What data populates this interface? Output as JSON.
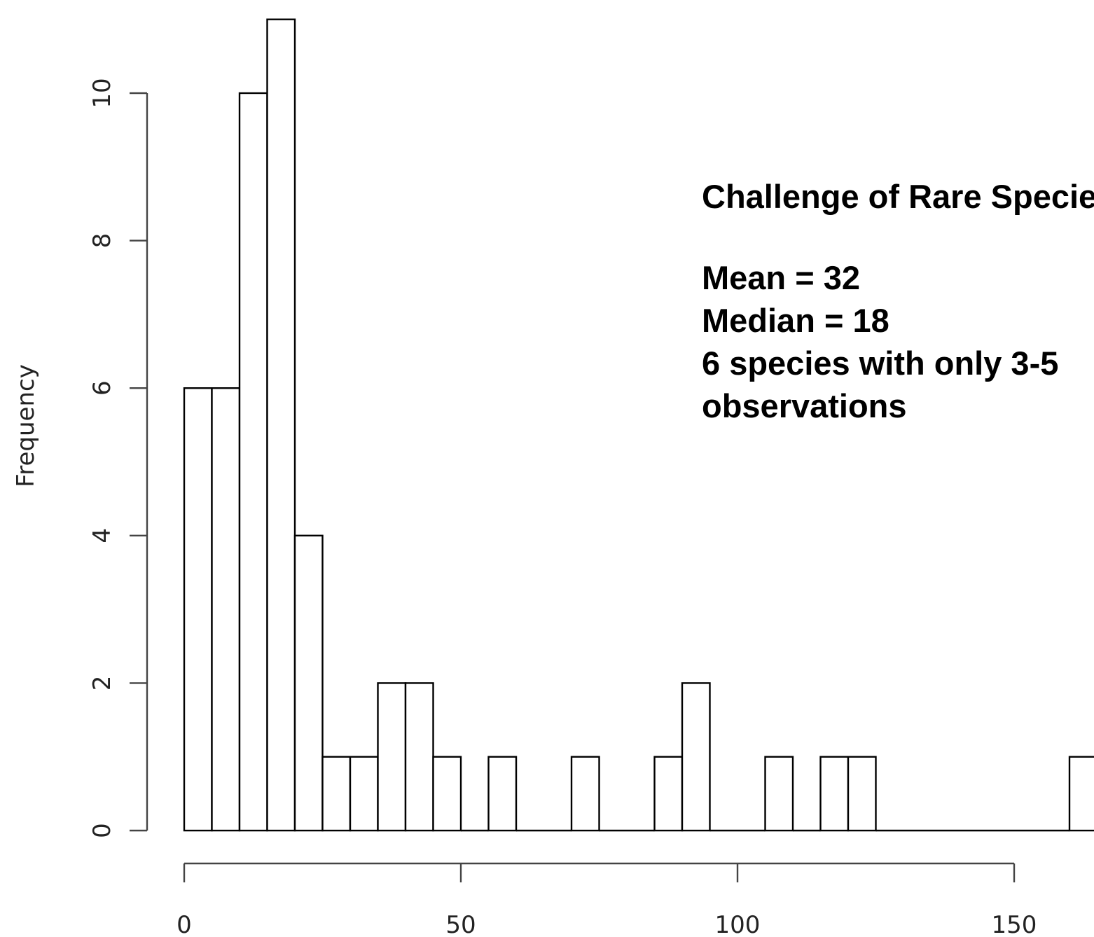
{
  "chart_data": {
    "type": "bar",
    "subtype": "histogram",
    "title": "",
    "xlabel": "",
    "ylabel": "Frequency",
    "bin_width": 5,
    "bin_starts": [
      0,
      5,
      10,
      15,
      20,
      25,
      30,
      35,
      40,
      45,
      50,
      55,
      60,
      65,
      70,
      75,
      80,
      85,
      90,
      95,
      100,
      105,
      110,
      115,
      120,
      125,
      130,
      135,
      140,
      145,
      150,
      155,
      160
    ],
    "values": [
      6,
      6,
      10,
      11,
      4,
      1,
      1,
      2,
      2,
      1,
      0,
      1,
      0,
      0,
      1,
      0,
      0,
      1,
      2,
      0,
      0,
      1,
      0,
      1,
      1,
      0,
      0,
      0,
      0,
      0,
      0,
      0,
      1
    ],
    "xlim": [
      0,
      165
    ],
    "ylim": [
      0,
      11
    ],
    "x_ticks": [
      0,
      50,
      100,
      150
    ],
    "x_tick_labels": [
      "0",
      "50",
      "100",
      "150"
    ],
    "y_ticks": [
      0,
      2,
      4,
      6,
      8,
      10
    ],
    "y_tick_labels": [
      "0",
      "2",
      "4",
      "6",
      "8",
      "10"
    ],
    "grid": false,
    "bar_fill": "#ffffff",
    "bar_stroke": "#000000",
    "annotation": {
      "heading": "Challenge of Rare Species",
      "lines": [
        "Mean = 32",
        "Median = 18",
        "6 species with only 3-5",
        "observations"
      ]
    }
  }
}
